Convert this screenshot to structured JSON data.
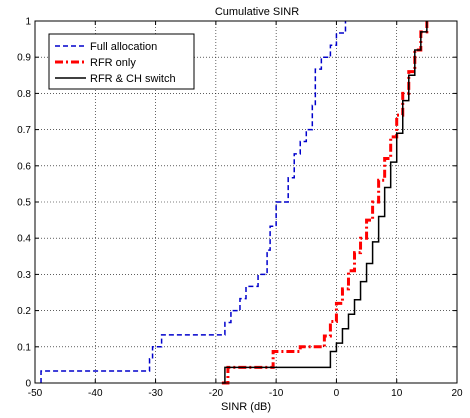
{
  "chart_data": {
    "type": "line",
    "title": "Cumulative SINR",
    "xlabel": "SINR (dB)",
    "ylabel": "",
    "xlim": [
      -50,
      20
    ],
    "ylim": [
      0,
      1
    ],
    "xticks": [
      -50,
      -40,
      -30,
      -20,
      -10,
      0,
      10,
      20
    ],
    "yticks": [
      0,
      0.1,
      0.2,
      0.3,
      0.4,
      0.5,
      0.6,
      0.7,
      0.8,
      0.9,
      1
    ],
    "grid": true,
    "legend_position": "top-left",
    "series": [
      {
        "name": "Full allocation",
        "color": "#0000cc",
        "style": "dashed",
        "step": true,
        "x": [
          -49,
          -31,
          -30.5,
          -29,
          -18.5,
          -17.5,
          -16,
          -15,
          -13,
          -11.5,
          -11,
          -10,
          -8,
          -7,
          -6,
          -5,
          -4,
          -3.5,
          -2.5,
          -1,
          0,
          1.5
        ],
        "y": [
          0.033,
          0.067,
          0.1,
          0.133,
          0.167,
          0.2,
          0.233,
          0.267,
          0.3,
          0.367,
          0.433,
          0.5,
          0.567,
          0.633,
          0.667,
          0.7,
          0.767,
          0.867,
          0.9,
          0.933,
          0.967,
          1.0
        ]
      },
      {
        "name": "RFR only",
        "color": "#ff0000",
        "style": "dashdot",
        "step": true,
        "x": [
          -19,
          -18,
          -14,
          -10.5,
          -6,
          -2,
          -1,
          0,
          1,
          2,
          3,
          4,
          5,
          6,
          7,
          8,
          9,
          10,
          11,
          12,
          13,
          14,
          15
        ],
        "y": [
          0,
          0.043,
          0.043,
          0.087,
          0.1,
          0.13,
          0.17,
          0.22,
          0.26,
          0.31,
          0.36,
          0.4,
          0.45,
          0.5,
          0.56,
          0.62,
          0.68,
          0.74,
          0.8,
          0.86,
          0.92,
          0.97,
          1.0
        ]
      },
      {
        "name": "RFR & CH switch",
        "color": "#000000",
        "style": "solid",
        "step": true,
        "x": [
          -19,
          -18.5,
          -10,
          -1,
          0,
          1,
          2,
          3,
          4,
          5,
          6,
          7,
          8,
          9,
          10,
          11,
          12,
          13,
          14,
          15
        ],
        "y": [
          0,
          0.043,
          0.043,
          0.087,
          0.11,
          0.15,
          0.19,
          0.23,
          0.28,
          0.33,
          0.39,
          0.46,
          0.54,
          0.61,
          0.69,
          0.78,
          0.85,
          0.92,
          0.97,
          1.0
        ]
      }
    ]
  }
}
